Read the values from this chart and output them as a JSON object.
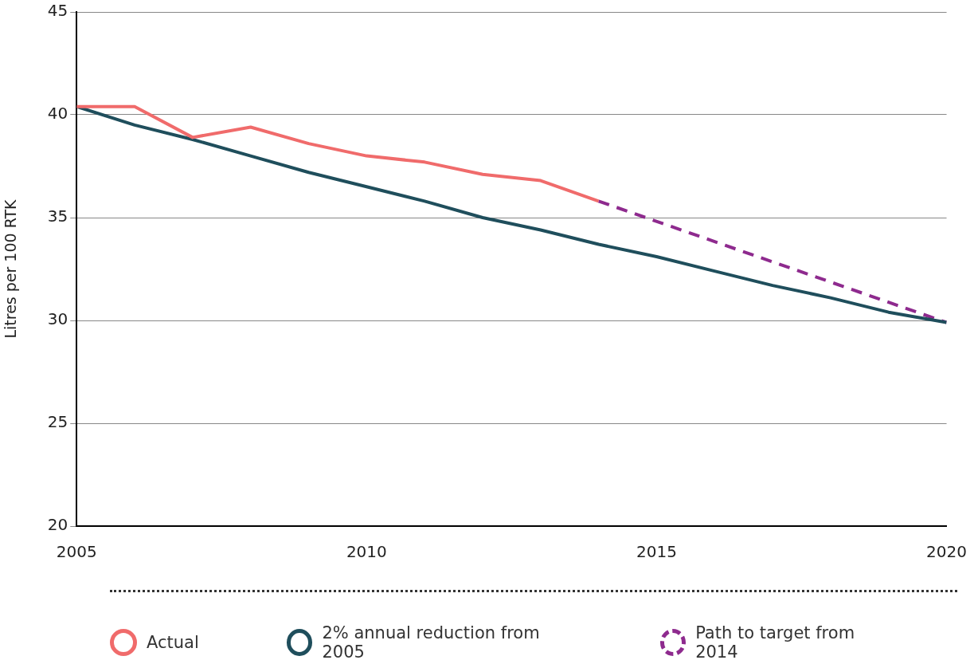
{
  "chart_data": {
    "type": "line",
    "ylabel": "Litres per 100 RTK",
    "xlim": [
      2005,
      2020
    ],
    "xticks": [
      2005,
      2010,
      2015,
      2020
    ],
    "ylim": [
      20,
      45
    ],
    "yticks": [
      20,
      25,
      30,
      35,
      40,
      45
    ],
    "grid": "y",
    "legend": "bottom",
    "marker": "none",
    "series": [
      {
        "name": "Actual",
        "color": "#f06b6b",
        "x": [
          2005,
          2006,
          2007,
          2008,
          2009,
          2010,
          2011,
          2012,
          2013,
          2014
        ],
        "values": [
          40.4,
          40.4,
          38.9,
          39.4,
          38.6,
          38.0,
          37.7,
          37.1,
          36.8,
          35.8
        ]
      },
      {
        "name": "2% annual reduction from 2005",
        "color": "#1f4e5c",
        "x": [
          2005,
          2006,
          2007,
          2008,
          2009,
          2010,
          2011,
          2012,
          2013,
          2014,
          2015,
          2016,
          2017,
          2018,
          2019,
          2020
        ],
        "values": [
          40.4,
          39.5,
          38.8,
          38.0,
          37.2,
          36.5,
          35.8,
          35.0,
          34.4,
          33.7,
          33.1,
          32.4,
          31.7,
          31.1,
          30.4,
          29.9
        ]
      },
      {
        "name": "Path to target from 2014",
        "color": "#8e2a8e",
        "line_style": "dashed",
        "x": [
          2014,
          2020
        ],
        "values": [
          35.8,
          29.9
        ]
      }
    ]
  }
}
